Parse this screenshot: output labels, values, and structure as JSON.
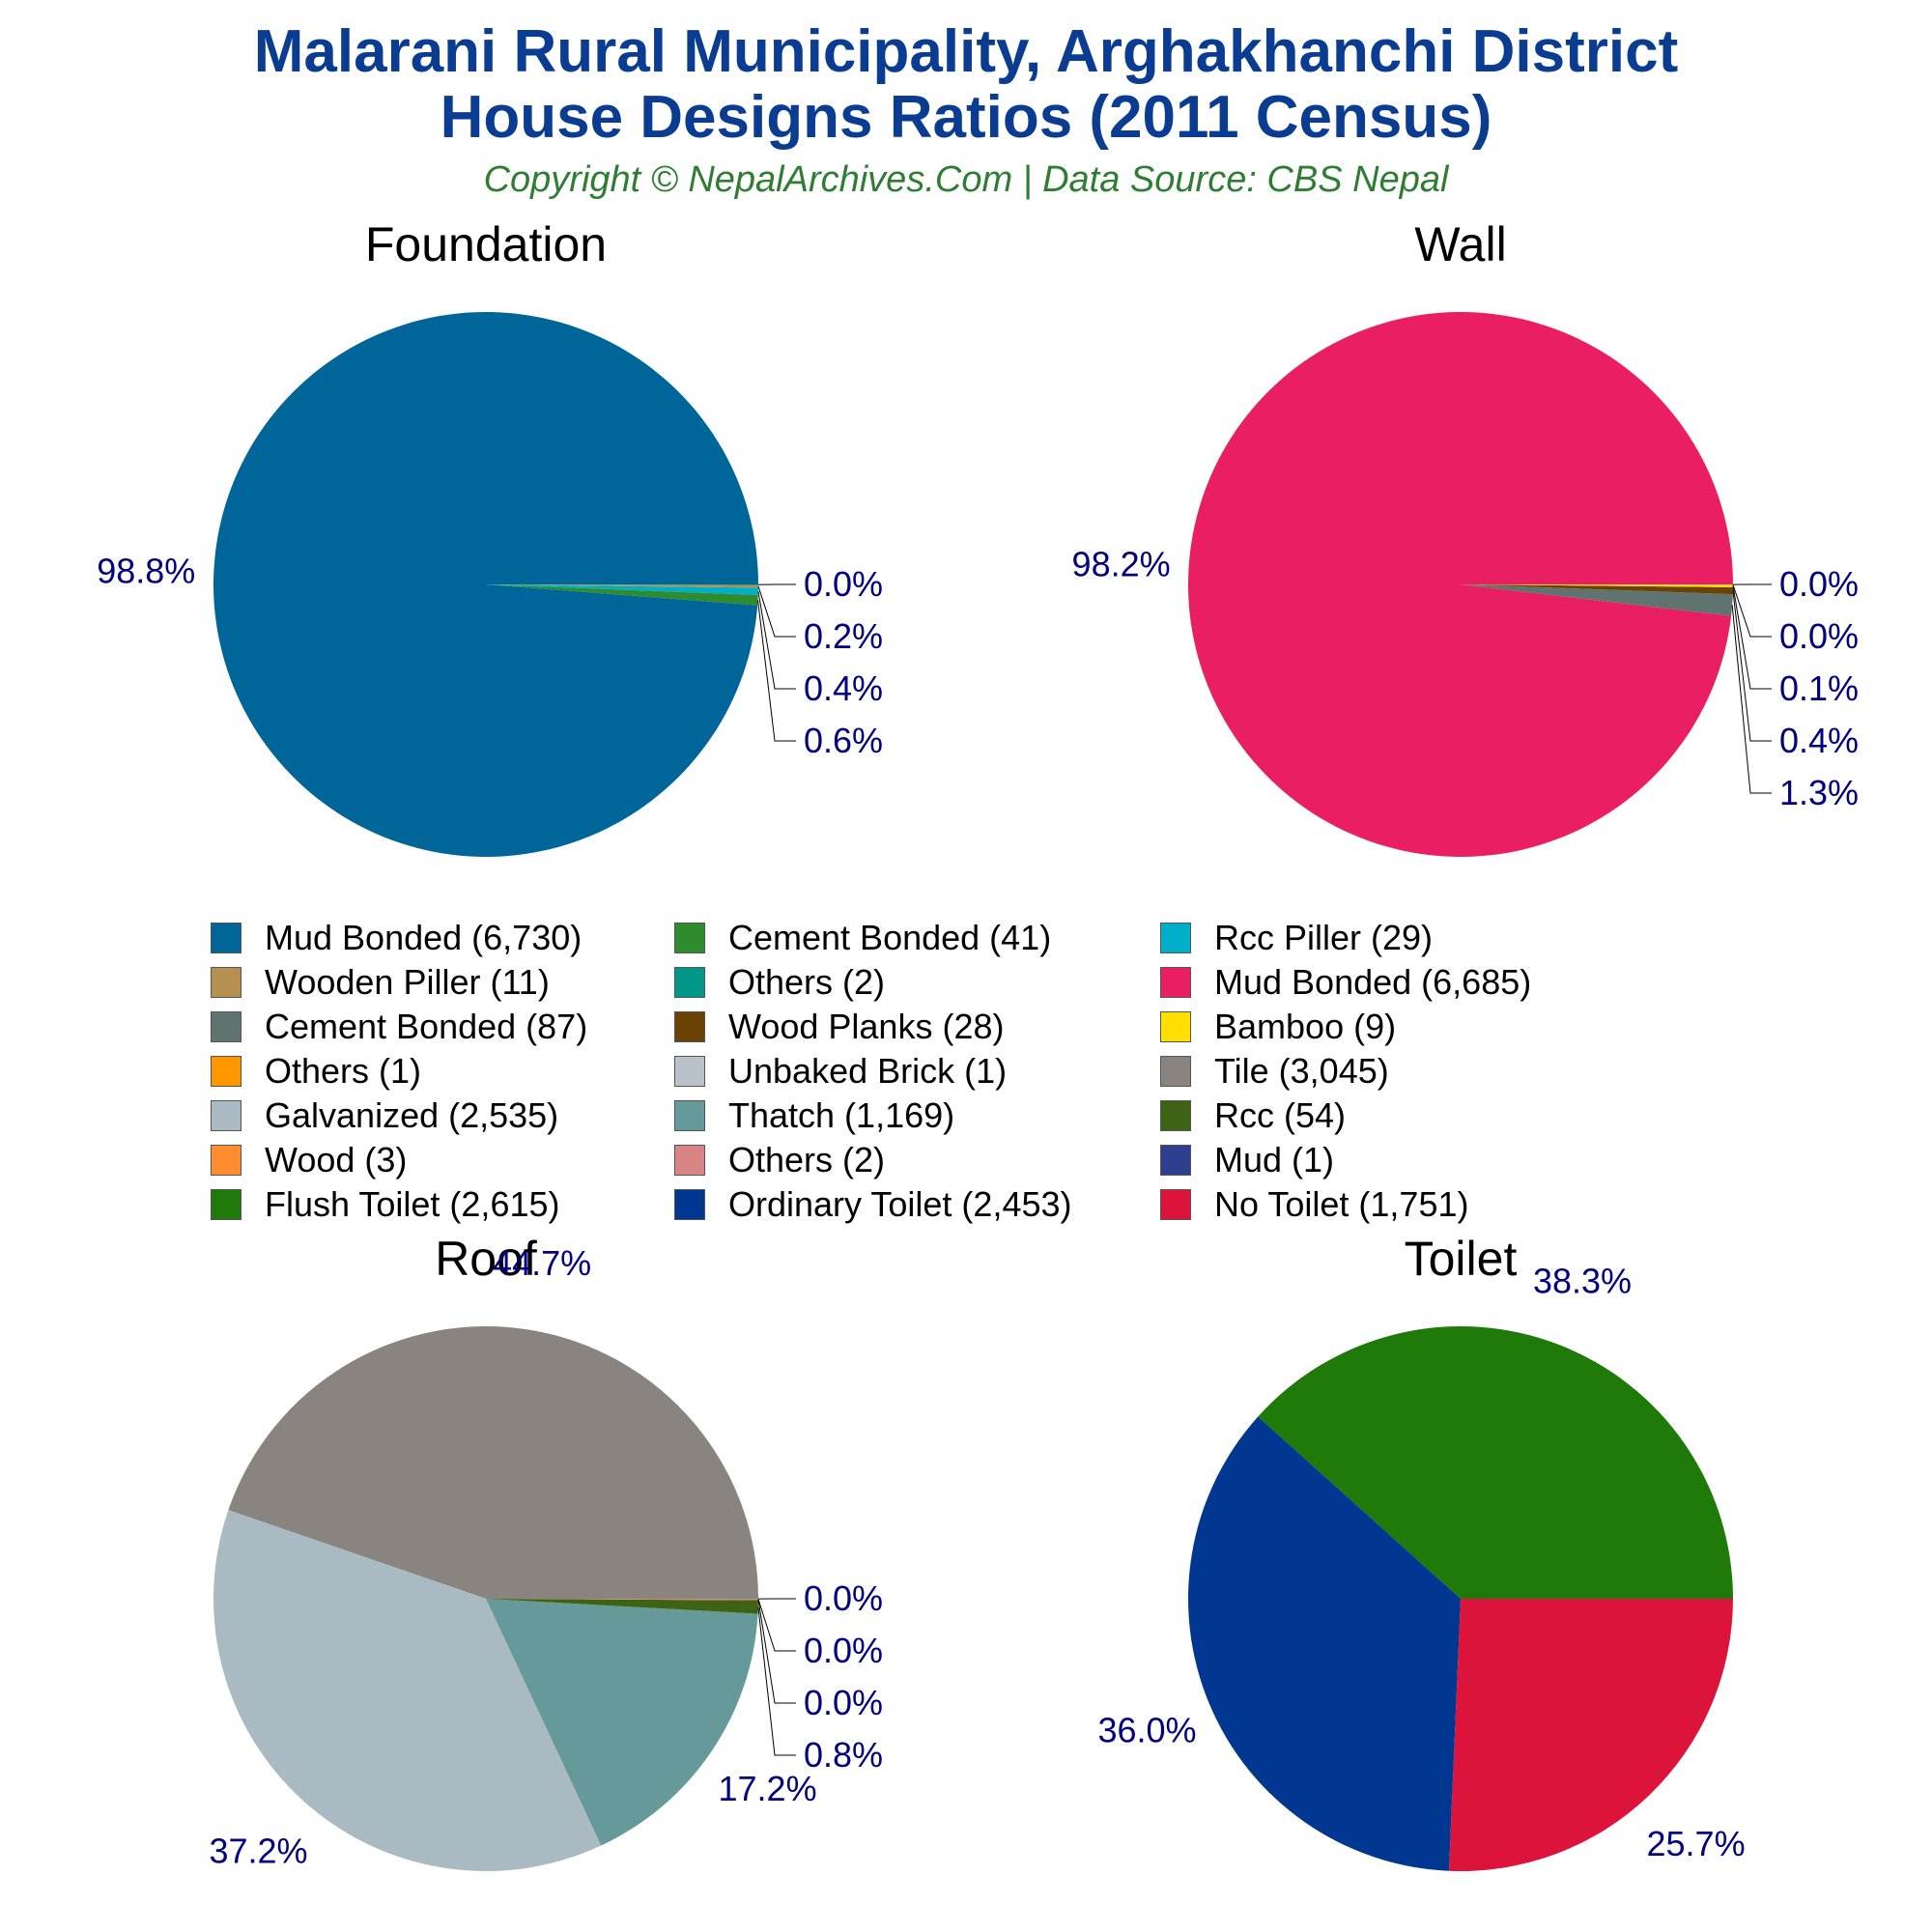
{
  "header": {
    "title_line1": "Malarani Rural Municipality, Arghakhanchi District",
    "title_line2": "House Designs Ratios (2011 Census)",
    "subtitle": "Copyright © NepalArchives.Com | Data Source: CBS Nepal"
  },
  "chart_data": [
    {
      "type": "pie",
      "title": "Foundation",
      "slices": [
        {
          "label": "Mud Bonded",
          "value": 6730,
          "pct_label": "98.8%",
          "color": "#006699"
        },
        {
          "label": "Cement Bonded",
          "value": 41,
          "pct_label": "0.6%",
          "color": "#2e8b2e"
        },
        {
          "label": "Rcc Piller",
          "value": 29,
          "pct_label": "0.4%",
          "color": "#00aec7"
        },
        {
          "label": "Wooden Piller",
          "value": 11,
          "pct_label": "0.2%",
          "color": "#b5904f"
        },
        {
          "label": "Others",
          "value": 2,
          "pct_label": "0.0%",
          "color": "#009688"
        }
      ]
    },
    {
      "type": "pie",
      "title": "Wall",
      "slices": [
        {
          "label": "Mud Bonded",
          "value": 6685,
          "pct_label": "98.2%",
          "color": "#e91e63"
        },
        {
          "label": "Cement Bonded",
          "value": 87,
          "pct_label": "1.3%",
          "color": "#5f7470"
        },
        {
          "label": "Wood Planks",
          "value": 28,
          "pct_label": "0.4%",
          "color": "#6b4206"
        },
        {
          "label": "Bamboo",
          "value": 9,
          "pct_label": "0.1%",
          "color": "#ffde00"
        },
        {
          "label": "Others",
          "value": 1,
          "pct_label": "0.0%",
          "color": "#ff9800"
        },
        {
          "label": "Unbaked Brick",
          "value": 1,
          "pct_label": "0.0%",
          "color": "#b8c2c8"
        }
      ]
    },
    {
      "type": "pie",
      "title": "Roof",
      "slices": [
        {
          "label": "Tile",
          "value": 3045,
          "pct_label": "44.7%",
          "color": "#8a8480"
        },
        {
          "label": "Galvanized",
          "value": 2535,
          "pct_label": "37.2%",
          "color": "#a9bac3"
        },
        {
          "label": "Thatch",
          "value": 1169,
          "pct_label": "17.2%",
          "color": "#669999"
        },
        {
          "label": "Rcc",
          "value": 54,
          "pct_label": "0.8%",
          "color": "#3f6314"
        },
        {
          "label": "Wood",
          "value": 3,
          "pct_label": "0.0%",
          "color": "#ff8c2e"
        },
        {
          "label": "Others",
          "value": 2,
          "pct_label": "0.0%",
          "color": "#d98585"
        },
        {
          "label": "Mud",
          "value": 1,
          "pct_label": "0.0%",
          "color": "#2e3f8f"
        }
      ]
    },
    {
      "type": "pie",
      "title": "Toilet",
      "slices": [
        {
          "label": "Flush Toilet",
          "value": 2615,
          "pct_label": "38.3%",
          "color": "#1f7a0a"
        },
        {
          "label": "Ordinary Toilet",
          "value": 2453,
          "pct_label": "36.0%",
          "color": "#003791"
        },
        {
          "label": "No Toilet",
          "value": 1751,
          "pct_label": "25.7%",
          "color": "#dc143c"
        }
      ]
    }
  ],
  "legend": [
    {
      "label": "Mud Bonded (6,730)",
      "color": "#006699"
    },
    {
      "label": "Cement Bonded (41)",
      "color": "#2e8b2e"
    },
    {
      "label": "Rcc Piller (29)",
      "color": "#00aec7"
    },
    {
      "label": "Wooden Piller (11)",
      "color": "#b5904f"
    },
    {
      "label": "Others (2)",
      "color": "#009688"
    },
    {
      "label": "Mud Bonded (6,685)",
      "color": "#e91e63"
    },
    {
      "label": "Cement Bonded (87)",
      "color": "#5f7470"
    },
    {
      "label": "Wood Planks (28)",
      "color": "#6b4206"
    },
    {
      "label": "Bamboo (9)",
      "color": "#ffde00"
    },
    {
      "label": "Others (1)",
      "color": "#ff9800"
    },
    {
      "label": "Unbaked Brick (1)",
      "color": "#b8c2c8"
    },
    {
      "label": "Tile (3,045)",
      "color": "#8a8480"
    },
    {
      "label": "Galvanized (2,535)",
      "color": "#a9bac3"
    },
    {
      "label": "Thatch (1,169)",
      "color": "#669999"
    },
    {
      "label": "Rcc (54)",
      "color": "#3f6314"
    },
    {
      "label": "Wood (3)",
      "color": "#ff8c2e"
    },
    {
      "label": "Others (2)",
      "color": "#d98585"
    },
    {
      "label": "Mud (1)",
      "color": "#2e3f8f"
    },
    {
      "label": "Flush Toilet (2,615)",
      "color": "#1f7a0a"
    },
    {
      "label": "Ordinary Toilet (2,453)",
      "color": "#003791"
    },
    {
      "label": "No Toilet (1,751)",
      "color": "#dc143c"
    }
  ]
}
